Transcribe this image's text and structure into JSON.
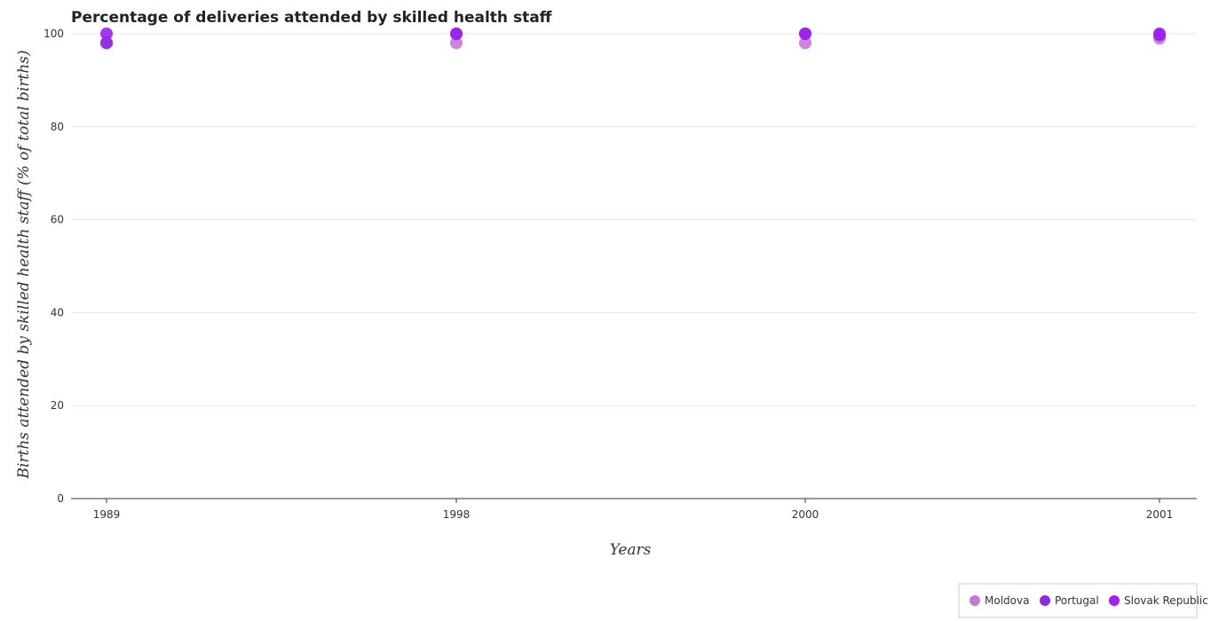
{
  "chart_data": {
    "type": "scatter",
    "title": "Percentage of deliveries attended by skilled health staff",
    "xlabel": "Years",
    "ylabel": "Births attended by skilled health staff (% of total births)",
    "categories": [
      "1989",
      "1998",
      "2000",
      "2001"
    ],
    "ylim": [
      0,
      100
    ],
    "yticks": [
      "0",
      "20",
      "40",
      "60",
      "80",
      "100"
    ],
    "grid": true,
    "legend_position": "bottom-right",
    "series": [
      {
        "name": "Moldova",
        "color": "#c678d6",
        "values": [
          98,
          98,
          98,
          99
        ]
      },
      {
        "name": "Portugal",
        "color": "#8a2be2",
        "values": [
          98,
          100,
          100,
          100
        ]
      },
      {
        "name": "Slovak Republic",
        "color": "#a020f0",
        "values": [
          100,
          100,
          100,
          99.7
        ]
      }
    ]
  }
}
